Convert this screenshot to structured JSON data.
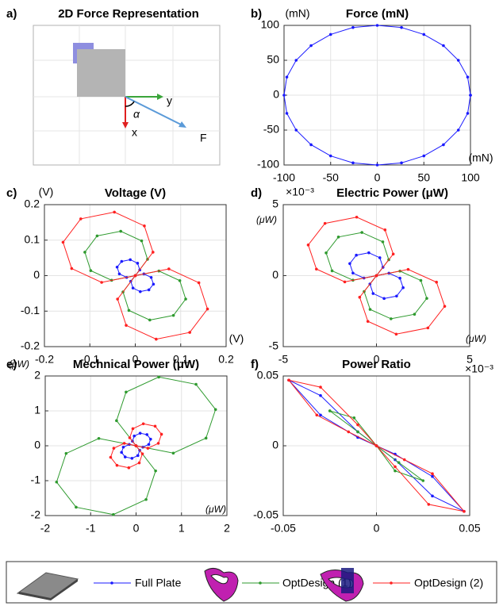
{
  "chart_data": [
    {
      "type": "diagram",
      "panel": "a)",
      "title": "2D Force Representation",
      "labels": {
        "y": "y",
        "x": "x",
        "alpha": "α",
        "force": "F"
      }
    },
    {
      "type": "line",
      "panel": "b)",
      "title": "Force (mN)",
      "x_unit": "(mN)",
      "y_unit": "(mN)",
      "xlim": [
        -100,
        100
      ],
      "ylim": [
        -100,
        100
      ],
      "xticks": [
        -100,
        -50,
        0,
        50,
        100
      ],
      "yticks": [
        -100,
        -50,
        0,
        50,
        100
      ],
      "grid": true,
      "color": "#1a1aff",
      "series": [
        {
          "x": [
            100,
            97,
            87,
            71,
            50,
            26,
            0,
            -26,
            -50,
            -71,
            -87,
            -97,
            -100,
            -97,
            -87,
            -71,
            -50,
            -26,
            0,
            26,
            50,
            71,
            87,
            97,
            100
          ],
          "values": [
            0,
            26,
            50,
            71,
            87,
            97,
            100,
            97,
            87,
            71,
            50,
            26,
            0,
            -26,
            -50,
            -71,
            -87,
            -97,
            -100,
            -97,
            -87,
            -71,
            -50,
            -26,
            0
          ]
        }
      ]
    },
    {
      "type": "line",
      "panel": "c)",
      "title": "Voltage (V)",
      "x_unit": "(V)",
      "y_unit": "(V)",
      "xlim": [
        -0.2,
        0.2
      ],
      "ylim": [
        -0.2,
        0.2
      ],
      "xticks": [
        -0.2,
        -0.1,
        0,
        0.1,
        0.2
      ],
      "yticks": [
        -0.2,
        -0.1,
        0,
        0.1,
        0.2
      ],
      "grid": true,
      "series": [
        {
          "x": [
            0,
            0.01,
            0.005,
            -0.011,
            -0.03,
            -0.04,
            -0.035,
            -0.019,
            0,
            -0.01,
            -0.005,
            0.011,
            0.03,
            0.04,
            0.035,
            0.019,
            0
          ],
          "values": [
            0,
            0.016,
            0.035,
            0.045,
            0.04,
            0.024,
            0.005,
            -0.005,
            0,
            -0.016,
            -0.035,
            -0.045,
            -0.04,
            -0.024,
            -0.005,
            0.005,
            0
          ]
        },
        {
          "x": [
            0,
            0.027,
            0.014,
            -0.032,
            -0.084,
            -0.111,
            -0.098,
            -0.052,
            0,
            -0.027,
            -0.014,
            0.032,
            0.084,
            0.111,
            0.098,
            0.052,
            0
          ],
          "values": [
            0,
            0.046,
            0.098,
            0.125,
            0.112,
            0.066,
            0.014,
            -0.013,
            0,
            -0.046,
            -0.098,
            -0.125,
            -0.112,
            -0.066,
            -0.014,
            0.013,
            0
          ]
        },
        {
          "x": [
            0,
            0.039,
            0.02,
            -0.046,
            -0.12,
            -0.159,
            -0.14,
            -0.074,
            0,
            -0.039,
            -0.02,
            0.046,
            0.12,
            0.159,
            0.14,
            0.074,
            0
          ],
          "values": [
            0,
            0.066,
            0.14,
            0.179,
            0.16,
            0.094,
            0.02,
            -0.019,
            0,
            -0.066,
            -0.14,
            -0.179,
            -0.16,
            -0.094,
            -0.02,
            0.019,
            0
          ]
        }
      ]
    },
    {
      "type": "line",
      "panel": "d)",
      "title": "Electric Power (μW)",
      "x_unit": "(μW)",
      "y_unit": "(μW)",
      "x_exponent": "×10⁻³",
      "y_exponent": "×10⁻³",
      "xlim": [
        -5,
        5
      ],
      "ylim": [
        -5,
        5
      ],
      "xticks": [
        -5,
        0,
        5
      ],
      "yticks": [
        -5,
        0,
        5
      ],
      "grid": true,
      "series": [
        {
          "x": [
            0,
            0.35,
            0.18,
            -0.41,
            -1.08,
            -1.43,
            -1.26,
            -0.67,
            0,
            -0.35,
            -0.18,
            0.41,
            1.08,
            1.43,
            1.26,
            0.67,
            0
          ],
          "values": [
            0,
            0.59,
            1.26,
            1.61,
            1.44,
            0.85,
            0.18,
            -0.17,
            0,
            -0.59,
            -1.26,
            -1.61,
            -1.44,
            -0.85,
            -0.18,
            0.17,
            0
          ]
        },
        {
          "x": [
            0,
            0.66,
            0.34,
            -0.78,
            -2.04,
            -2.7,
            -2.38,
            -1.26,
            0,
            -0.66,
            -0.34,
            0.78,
            2.04,
            2.7,
            2.38,
            1.26,
            0
          ],
          "values": [
            0,
            1.12,
            2.38,
            3.04,
            2.72,
            1.6,
            0.34,
            -0.32,
            0,
            -1.12,
            -2.38,
            -3.04,
            -2.72,
            -1.6,
            -0.34,
            0.32,
            0
          ]
        },
        {
          "x": [
            0,
            0.9,
            0.46,
            -1.06,
            -2.76,
            -3.66,
            -3.22,
            -1.7,
            0,
            -0.9,
            -0.46,
            1.06,
            2.76,
            3.66,
            3.22,
            1.7,
            0
          ],
          "values": [
            0,
            1.52,
            3.22,
            4.12,
            3.68,
            2.16,
            0.46,
            -0.44,
            0,
            -1.52,
            -3.22,
            -4.12,
            -3.68,
            -2.16,
            -0.46,
            0.44,
            0
          ]
        }
      ]
    },
    {
      "type": "line",
      "panel": "e)",
      "title": "Mechnical Power (μW)",
      "x_unit": "(μW)",
      "y_unit": "(μW)",
      "xlim": [
        -2,
        2
      ],
      "ylim": [
        -2,
        2
      ],
      "xticks": [
        -2,
        -1,
        0,
        1,
        2
      ],
      "yticks": [
        -2,
        -1,
        0,
        1,
        2
      ],
      "grid": true,
      "series": [
        {
          "x": [
            0,
            -0.08,
            -0.04,
            0.09,
            0.24,
            0.32,
            0.28,
            0.15,
            0,
            0.08,
            0.04,
            -0.09,
            -0.24,
            -0.32,
            -0.28,
            -0.15,
            0
          ],
          "values": [
            0,
            0.13,
            0.28,
            0.36,
            0.32,
            0.19,
            0.04,
            -0.04,
            0,
            -0.13,
            -0.28,
            -0.36,
            -0.32,
            -0.19,
            -0.04,
            0.04,
            0
          ]
        },
        {
          "x": [
            0,
            -0.43,
            -0.22,
            0.5,
            1.32,
            1.75,
            1.54,
            0.82,
            0,
            0.43,
            0.22,
            -0.5,
            -1.32,
            -1.75,
            -1.54,
            -0.82,
            0
          ],
          "values": [
            0,
            0.72,
            1.54,
            1.97,
            1.76,
            1.04,
            0.22,
            -0.21,
            0,
            -0.72,
            -1.54,
            -1.97,
            -1.76,
            -1.04,
            -0.22,
            0.21,
            0
          ]
        },
        {
          "x": [
            0,
            -0.14,
            -0.07,
            0.16,
            0.42,
            0.56,
            0.49,
            0.26,
            0,
            0.14,
            0.07,
            -0.16,
            -0.42,
            -0.56,
            -0.49,
            -0.26,
            0
          ],
          "values": [
            0,
            0.23,
            0.49,
            0.63,
            0.56,
            0.33,
            0.07,
            -0.07,
            0,
            -0.23,
            -0.49,
            -0.63,
            -0.56,
            -0.33,
            -0.07,
            0.07,
            0
          ]
        }
      ]
    },
    {
      "type": "line",
      "panel": "f)",
      "title": "Power Ratio",
      "xlim": [
        -0.05,
        0.05
      ],
      "ylim": [
        -0.05,
        0.05
      ],
      "xticks": [
        -0.05,
        0,
        0.05
      ],
      "yticks": [
        -0.05,
        0,
        0.05
      ],
      "grid": true,
      "series": [
        {
          "x": [
            -0.047,
            -0.03,
            -0.01,
            0,
            0.01,
            0.03,
            0.047,
            0.03,
            0.01,
            0,
            -0.01,
            -0.03,
            -0.047
          ],
          "values": [
            0.047,
            0.036,
            0.01,
            0,
            -0.006,
            -0.022,
            -0.047,
            -0.036,
            -0.01,
            0,
            0.006,
            0.022,
            0.047
          ]
        },
        {
          "x": [
            -0.025,
            -0.012,
            0,
            0.012,
            0.025,
            0.01,
            0,
            -0.01,
            -0.025
          ],
          "values": [
            0.025,
            0.02,
            0,
            -0.012,
            -0.025,
            -0.018,
            0,
            0.01,
            0.025
          ]
        },
        {
          "x": [
            -0.047,
            -0.03,
            -0.01,
            0,
            0.015,
            0.03,
            0.047,
            0.028,
            0.01,
            0,
            -0.015,
            -0.032,
            -0.047
          ],
          "values": [
            0.047,
            0.042,
            0.015,
            0,
            -0.01,
            -0.02,
            -0.047,
            -0.042,
            -0.015,
            0,
            0.01,
            0.022,
            0.047
          ]
        }
      ]
    }
  ],
  "legend": [
    {
      "name": "Full Plate",
      "color": "#1a1aff"
    },
    {
      "name": "OptDesign (1)",
      "color": "#2e9a2e"
    },
    {
      "name": "OptDesign (2)",
      "color": "#ff2020"
    }
  ]
}
